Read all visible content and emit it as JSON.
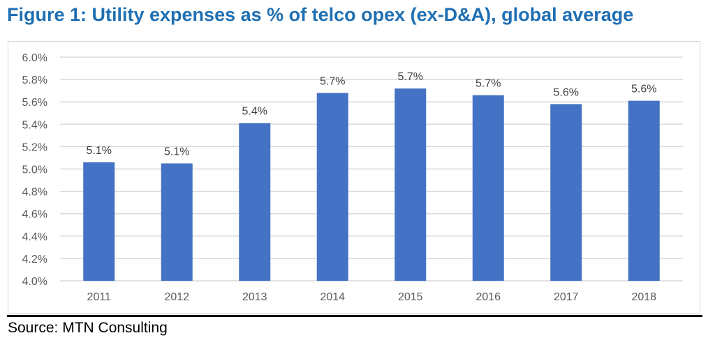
{
  "title": "Figure 1: Utility expenses as % of telco opex (ex-D&A), global average",
  "source": "Source: MTN Consulting",
  "colors": {
    "bar": "#4472c4",
    "title": "#1f6fb2",
    "grid": "#d9d9d9"
  },
  "chart_data": {
    "type": "bar",
    "title": "Figure 1: Utility expenses as % of telco opex (ex-D&A), global average",
    "xlabel": "",
    "ylabel": "",
    "categories": [
      "2011",
      "2012",
      "2013",
      "2014",
      "2015",
      "2016",
      "2017",
      "2018"
    ],
    "values": [
      5.06,
      5.05,
      5.41,
      5.68,
      5.72,
      5.66,
      5.58,
      5.61
    ],
    "data_labels": [
      "5.1%",
      "5.1%",
      "5.4%",
      "5.7%",
      "5.7%",
      "5.7%",
      "5.6%",
      "5.6%"
    ],
    "ylim": [
      4.0,
      6.0
    ],
    "yticks": [
      "4.0%",
      "4.2%",
      "4.4%",
      "4.6%",
      "4.8%",
      "5.0%",
      "5.2%",
      "5.4%",
      "5.6%",
      "5.8%",
      "6.0%"
    ],
    "grid": true,
    "legend": "none",
    "source": "Source: MTN Consulting"
  }
}
